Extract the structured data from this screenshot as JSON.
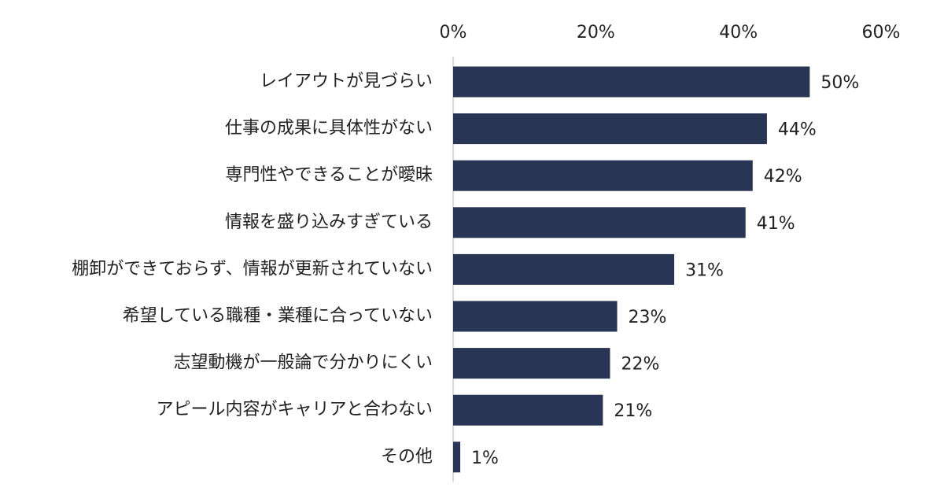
{
  "chart_data": {
    "type": "bar",
    "orientation": "horizontal",
    "title": "",
    "xlabel": "",
    "ylabel": "",
    "xlim": [
      0,
      60
    ],
    "x_ticks": [
      0,
      20,
      40,
      60
    ],
    "x_tick_labels": [
      "0%",
      "20%",
      "40%",
      "60%"
    ],
    "tick_position": "top",
    "grid": false,
    "legend": "none",
    "bar_color": "#283555",
    "axis_color": "#d9d9d9",
    "categories": [
      "レイアウトが見づらい",
      "仕事の成果に具体性がない",
      "専門性やできることが曖昧",
      "情報を盛り込みすぎている",
      "棚卸ができておらず、情報が更新されていない",
      "希望している職種・業種に合っていない",
      "志望動機が一般論で分かりにくい",
      "アピール内容がキャリアと合わない",
      "その他"
    ],
    "values": [
      50,
      44,
      42,
      41,
      31,
      23,
      22,
      21,
      1
    ],
    "data_labels": [
      "50%",
      "44%",
      "42%",
      "41%",
      "31%",
      "23%",
      "22%",
      "21%",
      "1%"
    ]
  }
}
